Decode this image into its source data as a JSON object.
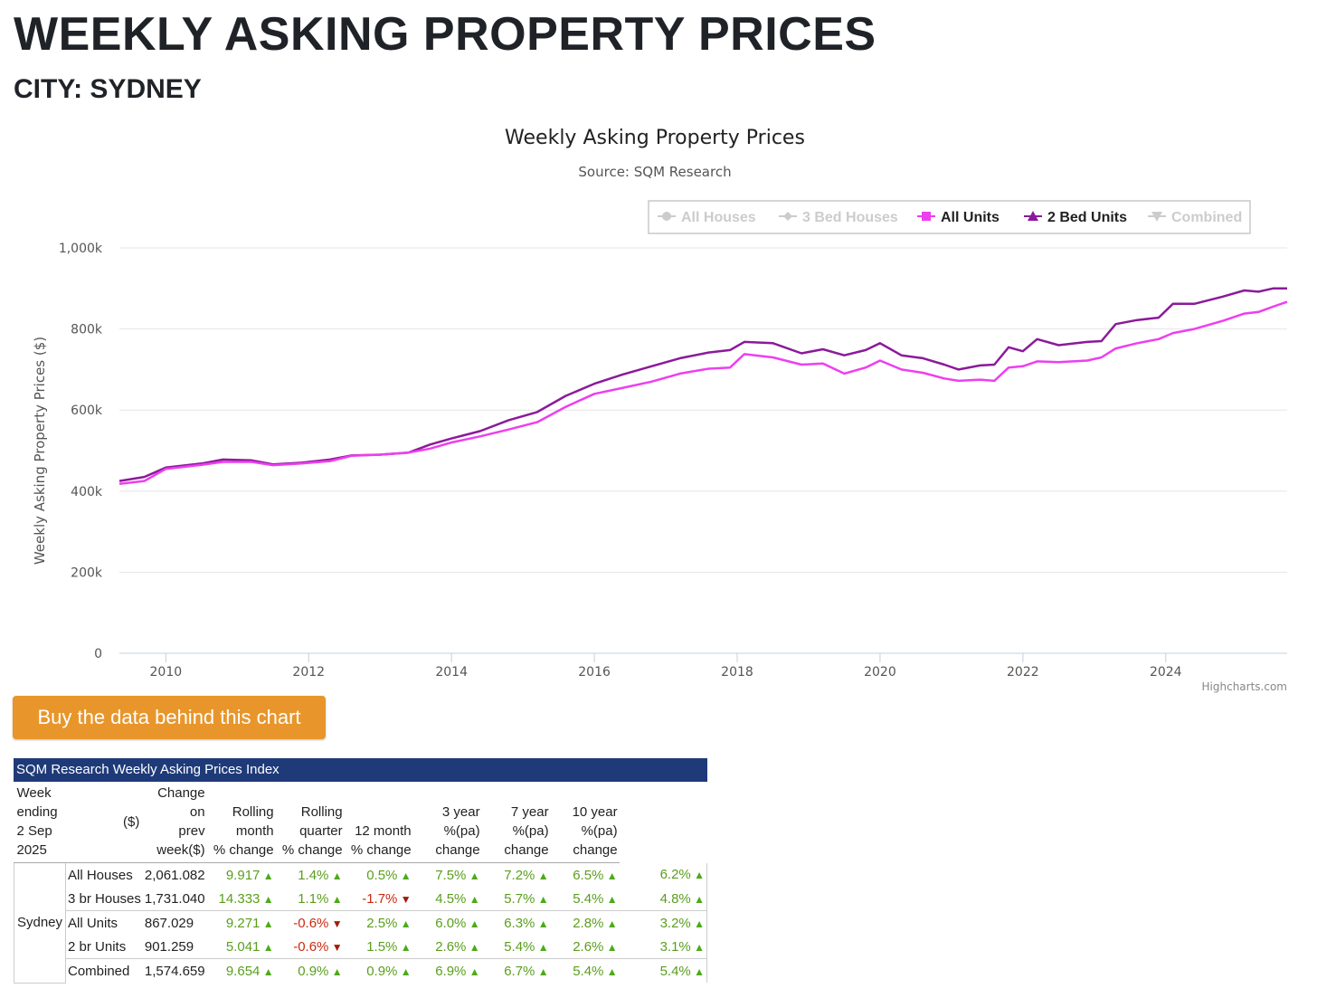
{
  "header": {
    "title": "WEEKLY ASKING PROPERTY PRICES",
    "subtitle": "CITY: SYDNEY"
  },
  "button": {
    "label": "Buy the data behind this chart"
  },
  "chart_data": {
    "type": "line",
    "title": "Weekly Asking Property Prices",
    "subtitle": "Source: SQM Research",
    "ylabel": "Weekly Asking Property Prices ($)",
    "ylim": [
      0,
      1000000
    ],
    "yticks": [
      0,
      200000,
      400000,
      600000,
      800000,
      1000000
    ],
    "ytick_labels": [
      "0",
      "200k",
      "400k",
      "600k",
      "800k",
      "1,000k"
    ],
    "xlim": [
      2009.35,
      2025.7
    ],
    "xticks": [
      2010,
      2012,
      2014,
      2016,
      2018,
      2020,
      2022,
      2024
    ],
    "xtick_labels": [
      "2010",
      "2012",
      "2014",
      "2016",
      "2018",
      "2020",
      "2022",
      "2024"
    ],
    "credits": "Highcharts.com",
    "grid": true,
    "legend_position": "top-right",
    "legend": [
      {
        "name": "All Houses",
        "visible": false,
        "marker": "circle",
        "color": "#cccccc"
      },
      {
        "name": "3 Bed Houses",
        "visible": false,
        "marker": "diamond",
        "color": "#cccccc"
      },
      {
        "name": "All Units",
        "visible": true,
        "marker": "square",
        "color": "#ee3ef0"
      },
      {
        "name": "2 Bed Units",
        "visible": true,
        "marker": "triangle",
        "color": "#8b1a9a"
      },
      {
        "name": "Combined",
        "visible": false,
        "marker": "triangle-down",
        "color": "#cccccc"
      }
    ],
    "series": [
      {
        "name": "2 Bed Units",
        "color": "#8b1a9a",
        "points": [
          [
            2009.35,
            425000
          ],
          [
            2009.7,
            435000
          ],
          [
            2010.0,
            458000
          ],
          [
            2010.5,
            468000
          ],
          [
            2010.8,
            478000
          ],
          [
            2011.2,
            476000
          ],
          [
            2011.5,
            466000
          ],
          [
            2011.9,
            470000
          ],
          [
            2012.3,
            478000
          ],
          [
            2012.6,
            488000
          ],
          [
            2013.0,
            490000
          ],
          [
            2013.4,
            495000
          ],
          [
            2013.7,
            515000
          ],
          [
            2014.0,
            530000
          ],
          [
            2014.4,
            548000
          ],
          [
            2014.8,
            575000
          ],
          [
            2015.2,
            595000
          ],
          [
            2015.6,
            635000
          ],
          [
            2016.0,
            665000
          ],
          [
            2016.4,
            688000
          ],
          [
            2016.8,
            708000
          ],
          [
            2017.2,
            728000
          ],
          [
            2017.6,
            742000
          ],
          [
            2017.9,
            748000
          ],
          [
            2018.1,
            768000
          ],
          [
            2018.5,
            765000
          ],
          [
            2018.9,
            740000
          ],
          [
            2019.2,
            750000
          ],
          [
            2019.5,
            735000
          ],
          [
            2019.8,
            748000
          ],
          [
            2020.0,
            765000
          ],
          [
            2020.3,
            735000
          ],
          [
            2020.6,
            728000
          ],
          [
            2020.9,
            712000
          ],
          [
            2021.1,
            700000
          ],
          [
            2021.4,
            710000
          ],
          [
            2021.6,
            712000
          ],
          [
            2021.8,
            755000
          ],
          [
            2022.0,
            745000
          ],
          [
            2022.2,
            775000
          ],
          [
            2022.5,
            760000
          ],
          [
            2022.9,
            768000
          ],
          [
            2023.1,
            770000
          ],
          [
            2023.3,
            812000
          ],
          [
            2023.6,
            822000
          ],
          [
            2023.9,
            828000
          ],
          [
            2024.1,
            862000
          ],
          [
            2024.4,
            862000
          ],
          [
            2024.8,
            880000
          ],
          [
            2025.1,
            895000
          ],
          [
            2025.3,
            892000
          ],
          [
            2025.5,
            900000
          ],
          [
            2025.7,
            900000
          ]
        ]
      },
      {
        "name": "All Units",
        "color": "#ee3ef0",
        "points": [
          [
            2009.35,
            418000
          ],
          [
            2009.7,
            425000
          ],
          [
            2010.0,
            455000
          ],
          [
            2010.5,
            465000
          ],
          [
            2010.8,
            472000
          ],
          [
            2011.2,
            472000
          ],
          [
            2011.5,
            464000
          ],
          [
            2011.9,
            468000
          ],
          [
            2012.3,
            474000
          ],
          [
            2012.6,
            487000
          ],
          [
            2013.0,
            490000
          ],
          [
            2013.4,
            495000
          ],
          [
            2013.7,
            505000
          ],
          [
            2014.0,
            520000
          ],
          [
            2014.4,
            535000
          ],
          [
            2014.8,
            552000
          ],
          [
            2015.2,
            570000
          ],
          [
            2015.6,
            608000
          ],
          [
            2016.0,
            640000
          ],
          [
            2016.4,
            655000
          ],
          [
            2016.8,
            670000
          ],
          [
            2017.2,
            690000
          ],
          [
            2017.6,
            702000
          ],
          [
            2017.9,
            705000
          ],
          [
            2018.1,
            738000
          ],
          [
            2018.5,
            730000
          ],
          [
            2018.9,
            712000
          ],
          [
            2019.2,
            715000
          ],
          [
            2019.5,
            690000
          ],
          [
            2019.8,
            705000
          ],
          [
            2020.0,
            722000
          ],
          [
            2020.3,
            700000
          ],
          [
            2020.6,
            692000
          ],
          [
            2020.9,
            678000
          ],
          [
            2021.1,
            672000
          ],
          [
            2021.4,
            675000
          ],
          [
            2021.6,
            672000
          ],
          [
            2021.8,
            705000
          ],
          [
            2022.0,
            708000
          ],
          [
            2022.2,
            720000
          ],
          [
            2022.5,
            718000
          ],
          [
            2022.9,
            722000
          ],
          [
            2023.1,
            730000
          ],
          [
            2023.3,
            752000
          ],
          [
            2023.6,
            765000
          ],
          [
            2023.9,
            775000
          ],
          [
            2024.1,
            790000
          ],
          [
            2024.4,
            800000
          ],
          [
            2024.8,
            820000
          ],
          [
            2025.1,
            838000
          ],
          [
            2025.3,
            842000
          ],
          [
            2025.5,
            855000
          ],
          [
            2025.7,
            867000
          ]
        ]
      }
    ]
  },
  "table": {
    "caption": "SQM Research Weekly Asking Prices Index",
    "headers": {
      "week": "Week ending",
      "date": "2 Sep 2025",
      "price": "($)",
      "change": [
        "Change",
        "on",
        "prev",
        "week($)"
      ],
      "month": [
        "Rolling",
        "month",
        "% change"
      ],
      "quarter": [
        "Rolling",
        "quarter",
        "% change"
      ],
      "year": [
        "12 month",
        "% change"
      ],
      "y3": [
        "3 year",
        "%(pa)",
        "change"
      ],
      "y7": [
        "7 year",
        "%(pa)",
        "change"
      ],
      "y10": [
        "10 year",
        "%(pa)",
        "change"
      ]
    },
    "city": "Sydney",
    "rows": [
      {
        "name": "All Houses",
        "price": "2,061.082",
        "cells": [
          [
            "9.917",
            "up"
          ],
          [
            "1.4%",
            "up"
          ],
          [
            "0.5%",
            "up"
          ],
          [
            "7.5%",
            "up"
          ],
          [
            "7.2%",
            "up"
          ],
          [
            "6.5%",
            "up"
          ],
          [
            "6.2%",
            "up"
          ]
        ]
      },
      {
        "name": "3 br Houses",
        "price": "1,731.040",
        "cells": [
          [
            "14.333",
            "up"
          ],
          [
            "1.1%",
            "up"
          ],
          [
            "-1.7%",
            "down"
          ],
          [
            "4.5%",
            "up"
          ],
          [
            "5.7%",
            "up"
          ],
          [
            "5.4%",
            "up"
          ],
          [
            "4.8%",
            "up"
          ]
        ]
      },
      {
        "name": "All Units",
        "price": "867.029",
        "cells": [
          [
            "9.271",
            "up"
          ],
          [
            "-0.6%",
            "down"
          ],
          [
            "2.5%",
            "up"
          ],
          [
            "6.0%",
            "up"
          ],
          [
            "6.3%",
            "up"
          ],
          [
            "2.8%",
            "up"
          ],
          [
            "3.2%",
            "up"
          ]
        ]
      },
      {
        "name": "2 br Units",
        "price": "901.259",
        "cells": [
          [
            "5.041",
            "up"
          ],
          [
            "-0.6%",
            "down"
          ],
          [
            "1.5%",
            "up"
          ],
          [
            "2.6%",
            "up"
          ],
          [
            "5.4%",
            "up"
          ],
          [
            "2.6%",
            "up"
          ],
          [
            "3.1%",
            "up"
          ]
        ]
      },
      {
        "name": "Combined",
        "price": "1,574.659",
        "cells": [
          [
            "9.654",
            "up"
          ],
          [
            "0.9%",
            "up"
          ],
          [
            "0.9%",
            "up"
          ],
          [
            "6.9%",
            "up"
          ],
          [
            "6.7%",
            "up"
          ],
          [
            "5.4%",
            "up"
          ],
          [
            "5.4%",
            "up"
          ]
        ]
      }
    ]
  }
}
